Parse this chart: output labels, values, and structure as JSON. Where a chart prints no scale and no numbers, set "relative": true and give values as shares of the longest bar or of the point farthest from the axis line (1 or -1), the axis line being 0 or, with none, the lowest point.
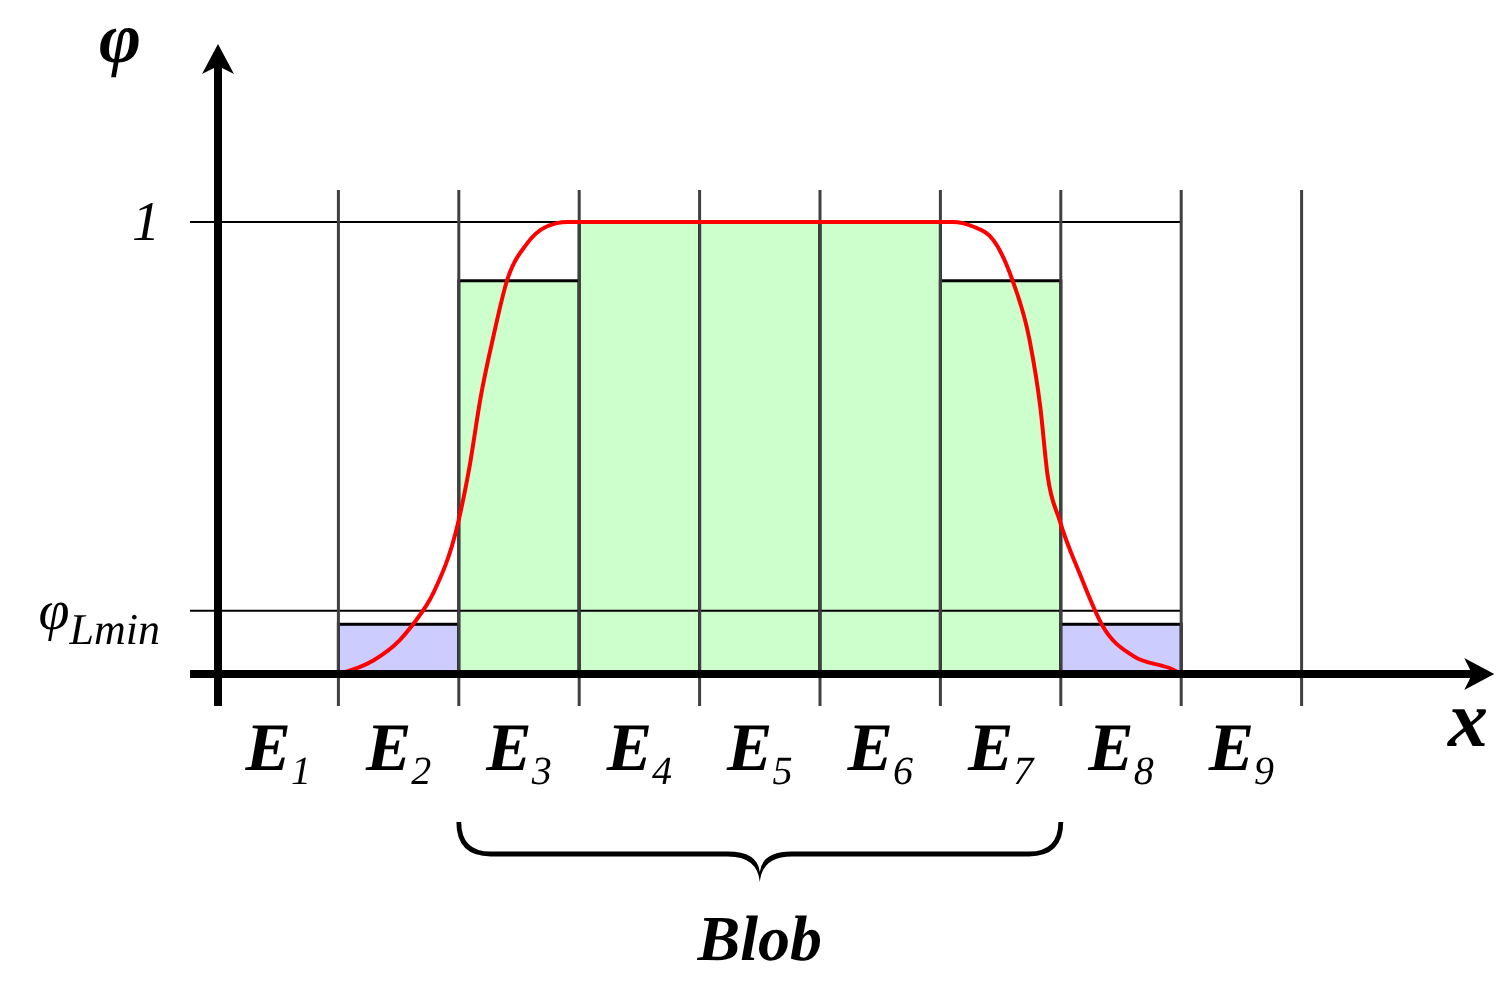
{
  "chart_data": {
    "type": "bar",
    "relative": true,
    "xlabel": "x",
    "ylabel": "φ",
    "xlim": [
      0,
      10.6
    ],
    "xticks": [
      {
        "value": 0.5,
        "label": "E$_{1}$"
      },
      {
        "value": 1.5,
        "label": "E$_{2}$"
      },
      {
        "value": 2.5,
        "label": "E$_{3}$"
      },
      {
        "value": 3.5,
        "label": "E$_{4}$"
      },
      {
        "value": 4.5,
        "label": "E$_{5}$"
      },
      {
        "value": 5.5,
        "label": "E$_{6}$"
      },
      {
        "value": 6.5,
        "label": "E$_{7}$"
      },
      {
        "value": 7.5,
        "label": "E$_{8}$"
      },
      {
        "value": 8.5,
        "label": "E$_{9}$"
      }
    ],
    "series": [
      {
        "x": [
          1.5,
          2.5,
          3.5,
          4.5,
          5.5,
          6.5,
          7.5
        ],
        "values": [
          0.11,
          0.87,
          1,
          1,
          1,
          0.87,
          0.11
        ],
        "colors": [
          "#ccccff",
          "#ccffcc",
          "#ccffcc",
          "#ccffcc",
          "#ccffcc",
          "#ccffcc",
          "#ccccff"
        ]
      },
      {
        "type": "line",
        "color": "#ff0000",
        "x": [
          1,
          1.29,
          1.51,
          1.62,
          1.79,
          1.99,
          2.09,
          2.18,
          2.29,
          2.4,
          2.56,
          2.73,
          2.9,
          6.1,
          6.27,
          6.44,
          6.6,
          6.74,
          6.83,
          6.89,
          6.99,
          7.16,
          7.35,
          7.6,
          7.93,
          8
        ],
        "values": [
          0,
          0.03,
          0.075,
          0.11,
          0.18,
          0.33,
          0.46,
          0.61,
          0.75,
          0.87,
          0.95,
          0.99,
          1,
          1,
          0.99,
          0.96,
          0.87,
          0.74,
          0.59,
          0.44,
          0.34,
          0.22,
          0.105,
          0.04,
          0.01,
          0
        ]
      }
    ],
    "ref_lines": [
      {
        "axis": "y",
        "value": 1,
        "label": "1",
        "color": "#000000"
      },
      {
        "axis": "y",
        "value": 0.14,
        "label": "φ$_{Lmin}$",
        "color": "#000000"
      },
      {
        "axis": "x",
        "value": 1,
        "color": "#404040"
      },
      {
        "axis": "x",
        "value": 2,
        "color": "#404040"
      },
      {
        "axis": "x",
        "value": 3,
        "color": "#404040"
      },
      {
        "axis": "x",
        "value": 4,
        "color": "#404040"
      },
      {
        "axis": "x",
        "value": 5,
        "color": "#404040"
      },
      {
        "axis": "x",
        "value": 6,
        "color": "#404040"
      },
      {
        "axis": "x",
        "value": 7,
        "color": "#404040"
      },
      {
        "axis": "x",
        "value": 8,
        "color": "#404040"
      },
      {
        "axis": "x",
        "value": 9,
        "color": "#404040"
      }
    ],
    "annotations": [
      "Blob"
    ]
  }
}
